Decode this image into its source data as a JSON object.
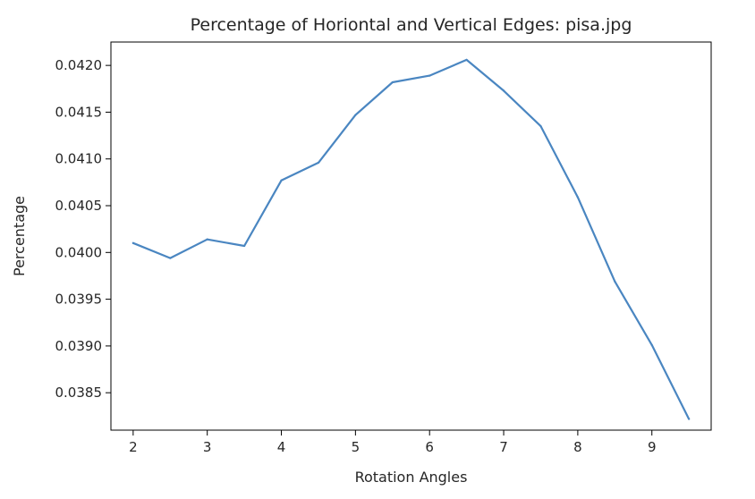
{
  "chart_data": {
    "type": "line",
    "title": "Percentage of Horiontal and Vertical Edges: pisa.jpg",
    "xlabel": "Rotation Angles",
    "ylabel": "Percentage",
    "xlim": [
      1.7,
      9.8
    ],
    "ylim": [
      0.0381,
      0.04225
    ],
    "xticks": [
      2,
      3,
      4,
      5,
      6,
      7,
      8,
      9
    ],
    "xtick_labels": [
      "2",
      "3",
      "4",
      "5",
      "6",
      "7",
      "8",
      "9"
    ],
    "yticks": [
      0.0385,
      0.039,
      0.0395,
      0.04,
      0.0405,
      0.041,
      0.0415,
      0.042
    ],
    "ytick_labels": [
      "0.0385",
      "0.0390",
      "0.0395",
      "0.0400",
      "0.0405",
      "0.0410",
      "0.0415",
      "0.0420"
    ],
    "grid": false,
    "series": [
      {
        "name": "pisa.jpg",
        "color": "#4a86c1",
        "x": [
          2,
          2.5,
          3,
          3.5,
          4,
          4.5,
          5,
          5.5,
          6,
          6.5,
          7,
          7.5,
          8,
          8.5,
          9,
          9.5
        ],
        "values": [
          0.0401,
          0.03994,
          0.04014,
          0.04007,
          0.04077,
          0.04096,
          0.04147,
          0.04182,
          0.04189,
          0.04206,
          0.04173,
          0.04135,
          0.04059,
          0.03969,
          0.03901,
          0.03822
        ]
      }
    ]
  }
}
